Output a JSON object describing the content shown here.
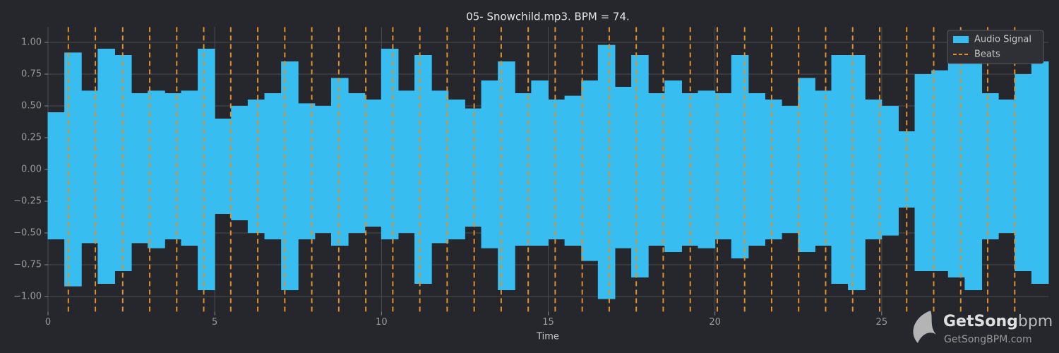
{
  "chart_data": {
    "type": "waveform",
    "title": "05- Snowchild.mp3. BPM =  74.",
    "xlabel": "Time",
    "xlim": [
      0,
      30
    ],
    "ylim": [
      -1.12,
      1.12
    ],
    "xticks": [
      0,
      5,
      10,
      15,
      20,
      25
    ],
    "yticks": [
      {
        "value": -1,
        "label": "−1.00"
      },
      {
        "value": -0.75,
        "label": "−0.75"
      },
      {
        "value": -0.5,
        "label": "−0.50"
      },
      {
        "value": -0.25,
        "label": "−0.25"
      },
      {
        "value": 0,
        "label": "0.00"
      },
      {
        "value": 0.25,
        "label": "0.25"
      },
      {
        "value": 0.5,
        "label": "0.50"
      },
      {
        "value": 0.75,
        "label": "0.75"
      },
      {
        "value": 1,
        "label": "1.00"
      }
    ],
    "grid": true,
    "legend": "upper right",
    "series": [
      {
        "name": "Audio Signal",
        "color": "#38bdf0",
        "x": [
          0.25,
          0.75,
          1.25,
          1.75,
          2.25,
          2.75,
          3.25,
          3.75,
          4.25,
          4.75,
          5.25,
          5.75,
          6.25,
          6.75,
          7.25,
          7.75,
          8.25,
          8.75,
          9.25,
          9.75,
          10.25,
          10.75,
          11.25,
          11.75,
          12.25,
          12.75,
          13.25,
          13.75,
          14.25,
          14.75,
          15.25,
          15.75,
          16.25,
          16.75,
          17.25,
          17.75,
          18.25,
          18.75,
          19.25,
          19.75,
          20.25,
          20.75,
          21.25,
          21.75,
          22.25,
          22.75,
          23.25,
          23.75,
          24.25,
          24.75,
          25.25,
          25.75,
          26.25,
          26.75,
          27.25,
          27.75,
          28.25,
          28.75,
          29.25,
          29.75
        ],
        "values": [
          0.45,
          0.92,
          0.62,
          0.95,
          0.9,
          0.6,
          0.62,
          0.6,
          0.62,
          0.95,
          0.4,
          0.5,
          0.55,
          0.6,
          0.85,
          0.52,
          0.5,
          0.72,
          0.6,
          0.55,
          0.95,
          0.62,
          0.9,
          0.62,
          0.55,
          0.48,
          0.7,
          0.85,
          0.6,
          0.7,
          0.55,
          0.58,
          0.7,
          0.98,
          0.65,
          0.9,
          0.6,
          0.7,
          0.6,
          0.62,
          0.6,
          0.9,
          0.6,
          0.55,
          0.5,
          0.72,
          0.62,
          0.9,
          0.9,
          0.55,
          0.5,
          0.3,
          0.75,
          0.78,
          0.85,
          0.9,
          0.6,
          0.55,
          0.75,
          0.85
        ],
        "lower": [
          -0.55,
          -0.92,
          -0.58,
          -0.9,
          -0.8,
          -0.58,
          -0.62,
          -0.55,
          -0.6,
          -0.95,
          -0.35,
          -0.4,
          -0.5,
          -0.55,
          -0.95,
          -0.55,
          -0.5,
          -0.6,
          -0.5,
          -0.45,
          -0.55,
          -0.5,
          -0.9,
          -0.58,
          -0.55,
          -0.45,
          -0.62,
          -0.95,
          -0.6,
          -0.6,
          -0.55,
          -0.6,
          -0.72,
          -1.02,
          -0.62,
          -0.85,
          -0.6,
          -0.65,
          -0.6,
          -0.62,
          -0.55,
          -0.7,
          -0.6,
          -0.55,
          -0.5,
          -0.65,
          -0.6,
          -0.9,
          -0.95,
          -0.55,
          -0.52,
          -0.3,
          -0.8,
          -0.8,
          -0.85,
          -0.95,
          -0.55,
          -0.5,
          -0.8,
          -0.9
        ]
      },
      {
        "name": "Beats",
        "color": "#e0902a",
        "x": [
          0.61,
          1.42,
          2.24,
          3.05,
          3.86,
          4.67,
          5.48,
          6.29,
          7.1,
          7.91,
          8.72,
          9.53,
          10.34,
          11.15,
          11.97,
          12.78,
          13.59,
          14.4,
          15.21,
          16.02,
          16.83,
          17.64,
          18.45,
          19.26,
          20.07,
          20.89,
          21.7,
          22.51,
          23.32,
          24.13,
          24.94,
          25.75,
          26.56,
          27.37,
          28.18,
          28.99
        ]
      }
    ]
  },
  "watermark": {
    "brand": "GetSong",
    "brand_suffix": "bpm",
    "url": "GetSongBPM.com"
  }
}
